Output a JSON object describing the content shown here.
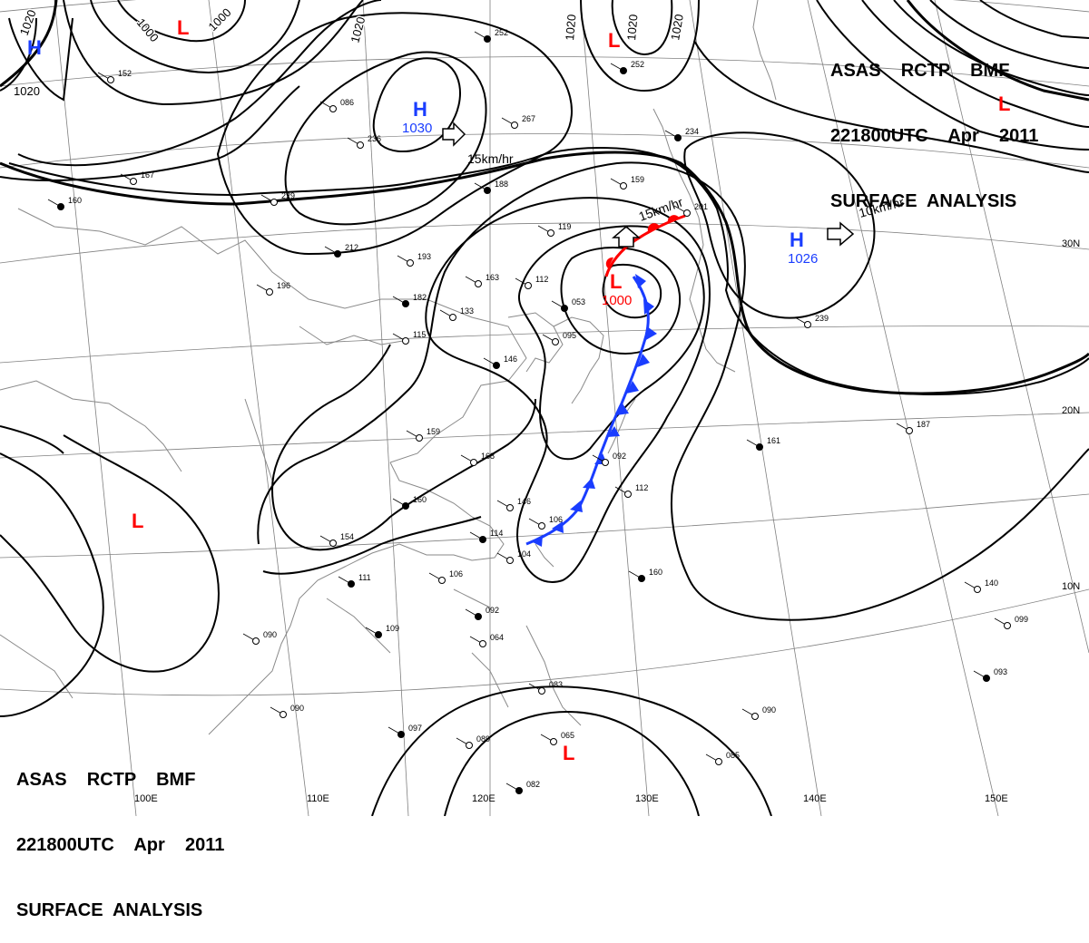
{
  "header": {
    "line1": "ASAS    RCTP    BMF",
    "line2": "221800UTC    Apr    2011",
    "line3": "SURFACE  ANALYSIS"
  },
  "colors": {
    "high": "#1a3dff",
    "low": "#ff0000",
    "cold_front": "#1a3dff",
    "warm_front": "#ff0000",
    "isobar": "#000000",
    "grid": "#808080",
    "coast": "#808080"
  },
  "pressure_centers": [
    {
      "type": "H",
      "pressure": "1030"
    },
    {
      "type": "H",
      "pressure": "1026"
    },
    {
      "type": "H",
      "pressure": ""
    },
    {
      "type": "L",
      "pressure": "1000"
    },
    {
      "type": "L",
      "pressure": ""
    },
    {
      "type": "L",
      "pressure": ""
    },
    {
      "type": "L",
      "pressure": ""
    },
    {
      "type": "L",
      "pressure": ""
    },
    {
      "type": "L",
      "pressure": ""
    }
  ],
  "motion_labels": [
    "15km/hr",
    "15km/hr",
    "10km/hr"
  ],
  "isobar_labels": [
    "1020",
    "1000",
    "1000",
    "1020",
    "1020",
    "1020",
    "1020",
    "1020"
  ],
  "lat_labels": [
    "30N",
    "20N",
    "10N"
  ],
  "lon_labels": [
    "100E",
    "110E",
    "120E",
    "130E",
    "140E",
    "150E"
  ],
  "station_plots": [
    "252",
    "267",
    "229",
    "212",
    "193",
    "196",
    "182",
    "163",
    "133",
    "146",
    "115",
    "159",
    "160",
    "168",
    "146",
    "114",
    "106",
    "104",
    "111",
    "106",
    "154",
    "109",
    "090",
    "090",
    "092",
    "064",
    "083",
    "097",
    "089",
    "065",
    "082",
    "085",
    "090",
    "093",
    "099",
    "140",
    "160",
    "112",
    "092",
    "161",
    "187",
    "239",
    "234",
    "201",
    "159",
    "188",
    "119",
    "112",
    "053",
    "095",
    "167",
    "160",
    "152",
    "086",
    "252",
    "236"
  ]
}
